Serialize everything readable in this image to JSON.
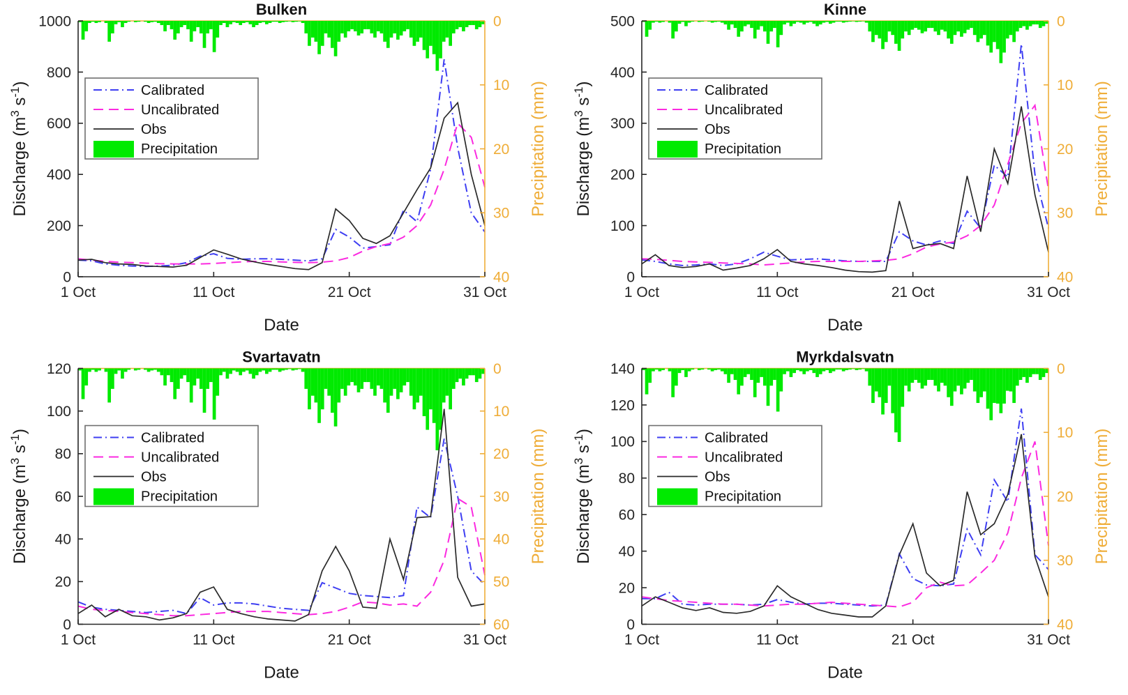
{
  "figure": {
    "background": "#ffffff",
    "description": "Four-panel hydrograph comparison: modelled vs observed discharge with precipitation hyetograph on an inverted right axis"
  },
  "chart_data": {
    "type": "line+bar",
    "layout": "2x2",
    "x": {
      "range_days": [
        1,
        31
      ],
      "month": "Oct",
      "tick_days": [
        1,
        11,
        21,
        31
      ],
      "tick_labels": [
        "1 Oct",
        "11 Oct",
        "21 Oct",
        "31 Oct"
      ],
      "label": "Date"
    },
    "left_axis_label_parts": [
      {
        "t": "Discharge (m"
      },
      {
        "t": "3",
        "sup": true
      },
      {
        "t": " s"
      },
      {
        "t": "-1",
        "sup": true
      },
      {
        "t": ")"
      }
    ],
    "right_axis_label": "Precipitation (mm)",
    "right_axis_inverted": true,
    "legend": {
      "items": [
        "Calibrated",
        "Uncalibrated",
        "Obs",
        "Precipitation"
      ],
      "position": "upper-left",
      "border_color": "#6e6e6e"
    },
    "colors": {
      "calibrated": "#3e3ef2",
      "uncalibrated": "#fb2ae0",
      "obs": "#2a2a2a",
      "precipitation": "#00ea00",
      "right_axis": "#efad38",
      "axis": "#262626",
      "title": "#111111"
    },
    "precip_pattern_6h_mm": [
      0.3,
      4.5,
      2.5,
      0.5,
      0.2,
      0.5,
      0.3,
      0,
      0.5,
      5,
      3,
      0.8,
      0.3,
      1.5,
      0.5,
      0.2,
      0,
      0.3,
      0.2,
      0,
      0.2,
      0.5,
      0.3,
      0.2,
      0.5,
      1,
      2.5,
      1,
      2,
      4.5,
      3,
      1.5,
      1,
      2,
      5,
      2.5,
      1.5,
      3,
      6.5,
      3,
      2,
      7.5,
      4,
      1,
      0.5,
      1.5,
      0.8,
      0.3,
      0.5,
      1,
      0.5,
      0.3,
      0.8,
      1.5,
      1,
      0.5,
      0.3,
      0.8,
      0.5,
      0.2,
      0.2,
      0.5,
      0.3,
      0.2,
      0.1,
      0.3,
      0.2,
      0.1,
      0.5,
      3,
      6,
      4,
      5,
      8,
      6,
      3,
      4,
      6.5,
      8.5,
      5,
      3,
      4,
      2.5,
      2,
      2.5,
      3.5,
      3,
      2,
      2,
      3,
      4,
      2.5,
      3,
      5,
      6.5,
      4,
      3,
      4.5,
      3.5,
      2.5,
      2,
      4,
      6,
      5,
      4,
      7,
      9,
      6,
      8,
      12,
      9,
      5,
      4,
      6,
      3,
      2,
      1.5,
      2.5,
      1.5,
      1,
      1,
      2,
      1.5,
      0.8
    ],
    "panels": [
      {
        "title": "Bulken",
        "ylim": [
          0,
          1000
        ],
        "yticks": [
          0,
          200,
          400,
          600,
          800,
          1000
        ],
        "right_ylim": [
          0,
          40
        ],
        "right_yticks": [
          0,
          10,
          20,
          30,
          40
        ],
        "precip_scale": 0.65,
        "precip_overrides": {},
        "series": {
          "calibrated": [
            65,
            62,
            50,
            45,
            42,
            40,
            42,
            45,
            55,
            80,
            90,
            72,
            68,
            70,
            70,
            68,
            65,
            62,
            70,
            185,
            155,
            112,
            118,
            125,
            260,
            215,
            420,
            850,
            505,
            250,
            175
          ],
          "uncalibrated": [
            70,
            65,
            60,
            57,
            55,
            53,
            51,
            50,
            50,
            50,
            52,
            55,
            58,
            60,
            60,
            58,
            56,
            55,
            57,
            62,
            75,
            100,
            118,
            130,
            155,
            200,
            280,
            420,
            600,
            545,
            350
          ],
          "obs": [
            65,
            68,
            55,
            50,
            48,
            42,
            40,
            38,
            45,
            75,
            105,
            88,
            70,
            58,
            48,
            40,
            32,
            28,
            55,
            265,
            220,
            150,
            130,
            160,
            250,
            340,
            425,
            620,
            680,
            400,
            200
          ]
        }
      },
      {
        "title": "Kinne",
        "ylim": [
          0,
          500
        ],
        "yticks": [
          0,
          100,
          200,
          300,
          400,
          500
        ],
        "right_ylim": [
          0,
          40
        ],
        "right_yticks": [
          0,
          10,
          20,
          30,
          40
        ],
        "precip_scale": 0.55,
        "precip_overrides": {},
        "series": {
          "calibrated": [
            33,
            30,
            25,
            22,
            23,
            25,
            22,
            25,
            35,
            48,
            40,
            33,
            34,
            35,
            33,
            31,
            30,
            30,
            30,
            88,
            70,
            62,
            70,
            65,
            128,
            95,
            218,
            195,
            455,
            200,
            95
          ],
          "uncalibrated": [
            35,
            34,
            32,
            30,
            29,
            28,
            27,
            26,
            25,
            23,
            25,
            27,
            29,
            30,
            30,
            30,
            30,
            31,
            32,
            35,
            45,
            58,
            64,
            68,
            80,
            100,
            140,
            220,
            300,
            335,
            170
          ],
          "obs": [
            25,
            43,
            22,
            18,
            20,
            25,
            13,
            17,
            22,
            35,
            53,
            30,
            25,
            22,
            18,
            13,
            10,
            9,
            12,
            148,
            55,
            62,
            65,
            55,
            197,
            88,
            250,
            182,
            333,
            160,
            48
          ]
        }
      },
      {
        "title": "Svartavatn",
        "ylim": [
          0,
          120
        ],
        "yticks": [
          0,
          20,
          40,
          60,
          80,
          100,
          120
        ],
        "right_ylim": [
          0,
          60
        ],
        "right_yticks": [
          0,
          10,
          20,
          30,
          40,
          50,
          60
        ],
        "precip_scale": 1.6,
        "precip_overrides": {},
        "series": {
          "calibrated": [
            10.5,
            8,
            7,
            6.5,
            6,
            5.5,
            6,
            6.5,
            5,
            12.5,
            9,
            10,
            10,
            9.5,
            8.5,
            7.5,
            7,
            6.5,
            19.5,
            17,
            14.5,
            13.5,
            13,
            12.5,
            13.5,
            55,
            50,
            87,
            60,
            25,
            18.5
          ],
          "uncalibrated": [
            8.5,
            7,
            6.5,
            6,
            5.5,
            5,
            4.5,
            4,
            4,
            4.5,
            5,
            5.5,
            6,
            6,
            6,
            5.5,
            5,
            4.5,
            5,
            6,
            8,
            10.5,
            10,
            9,
            9.5,
            8.5,
            15,
            30,
            59,
            55,
            23
          ],
          "obs": [
            5,
            9,
            3.5,
            7,
            4,
            3.5,
            2,
            3,
            5,
            15,
            17.5,
            7,
            5,
            3.5,
            2.5,
            2,
            1.5,
            4.5,
            25,
            36.5,
            25,
            8,
            7.5,
            40,
            21,
            50,
            50.5,
            101,
            22,
            8.5,
            9.5
          ]
        }
      },
      {
        "title": "Myrkdalsvatn",
        "ylim": [
          0,
          140
        ],
        "yticks": [
          0,
          20,
          40,
          60,
          80,
          100,
          120,
          140
        ],
        "right_ylim": [
          0,
          40
        ],
        "right_yticks": [
          0,
          10,
          20,
          30,
          40
        ],
        "precip_scale": 0.9,
        "precip_overrides": {
          "76": 7,
          "77": 10,
          "78": 11.5,
          "79": 6,
          "108": 5.5,
          "109": 7,
          "110": 5.5,
          "111": 3.5
        },
        "series": {
          "calibrated": [
            14,
            14,
            17.5,
            11,
            10.5,
            11,
            11,
            11,
            10.5,
            11,
            13.5,
            12,
            11,
            11.5,
            11.5,
            11,
            10.5,
            10,
            10.5,
            38.5,
            25,
            21.5,
            21,
            22,
            52,
            38,
            79,
            67,
            118,
            38,
            30
          ],
          "uncalibrated": [
            15,
            14,
            13,
            12.5,
            12,
            11.5,
            11,
            11,
            10.5,
            10,
            10.5,
            11,
            11,
            11.5,
            12,
            11.5,
            11,
            10.5,
            10,
            9.5,
            12,
            20,
            23,
            21,
            21.5,
            28,
            35,
            50,
            80,
            100,
            43
          ],
          "obs": [
            10,
            15,
            12,
            9,
            7.5,
            9,
            6.5,
            6,
            7,
            10,
            21,
            15,
            11.5,
            8,
            6,
            5,
            4,
            4,
            10,
            38,
            55,
            28,
            21,
            24,
            72.5,
            49,
            55,
            71,
            104,
            37,
            15
          ]
        }
      }
    ]
  }
}
